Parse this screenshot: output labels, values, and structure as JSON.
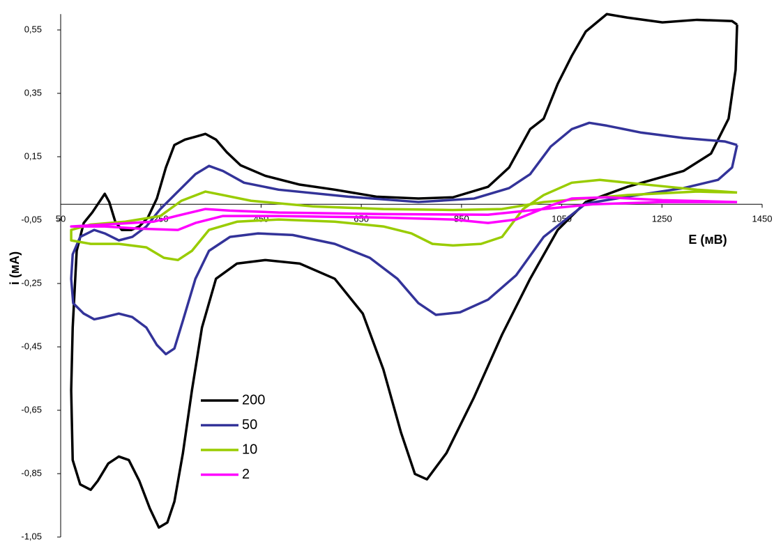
{
  "chart_data": {
    "type": "line",
    "x_label": "E (мВ)",
    "y_label": "i (мА)",
    "xlim": [
      50,
      1450
    ],
    "xticks": [
      50,
      250,
      450,
      650,
      850,
      1050,
      1250,
      1450
    ],
    "ylim": [
      -1.05,
      0.6
    ],
    "yticks": [
      {
        "value": 0.55,
        "label": "0,55"
      },
      {
        "value": 0.35,
        "label": "0,35"
      },
      {
        "value": 0.15,
        "label": "0,15"
      },
      {
        "value": -0.05,
        "label": "-0,05"
      },
      {
        "value": -0.25,
        "label": "-0,25"
      },
      {
        "value": -0.45,
        "label": "-0,45"
      },
      {
        "value": -0.65,
        "label": "-0,65"
      },
      {
        "value": -0.85,
        "label": "-0,85"
      },
      {
        "value": -1.05,
        "label": "-1,05"
      }
    ],
    "legend": "lower left",
    "series": [
      {
        "name": "200",
        "color": "#000000",
        "x": [
          1400,
          1397,
          1383,
          1348,
          1293,
          1181,
          1098,
          1042,
          987,
          931,
          875,
          820,
          781,
          757,
          729,
          694,
          653,
          597,
          527,
          458,
          402,
          360,
          332,
          312,
          294,
          277,
          263,
          246,
          228,
          207,
          186,
          166,
          145,
          124,
          110,
          89,
          74,
          71,
          74,
          82,
          96,
          113,
          127,
          138,
          147,
          159,
          172,
          191,
          207,
          224,
          242,
          260,
          277,
          298,
          319,
          339,
          360,
          381,
          409,
          458,
          527,
          597,
          680,
          764,
          833,
          903,
          945,
          987,
          1014,
          1042,
          1070,
          1098,
          1140,
          1181,
          1251,
          1320,
          1390,
          1400
        ],
        "values": [
          0.567,
          0.424,
          0.27,
          0.16,
          0.105,
          0.055,
          0.007,
          -0.081,
          -0.235,
          -0.411,
          -0.609,
          -0.785,
          -0.868,
          -0.851,
          -0.719,
          -0.521,
          -0.345,
          -0.235,
          -0.187,
          -0.176,
          -0.187,
          -0.235,
          -0.389,
          -0.587,
          -0.785,
          -0.938,
          -1.004,
          -1.02,
          -0.96,
          -0.873,
          -0.807,
          -0.796,
          -0.818,
          -0.873,
          -0.901,
          -0.884,
          -0.807,
          -0.587,
          -0.389,
          -0.147,
          -0.059,
          -0.026,
          0.007,
          0.033,
          0.007,
          -0.055,
          -0.081,
          -0.081,
          -0.07,
          -0.042,
          0.018,
          0.116,
          0.187,
          0.204,
          0.213,
          0.222,
          0.204,
          0.165,
          0.123,
          0.09,
          0.062,
          0.046,
          0.024,
          0.018,
          0.022,
          0.055,
          0.116,
          0.237,
          0.27,
          0.38,
          0.468,
          0.545,
          0.6,
          0.589,
          0.574,
          0.582,
          0.578,
          0.567
        ]
      },
      {
        "name": "50",
        "color": "#333399",
        "x": [
          1400,
          1390,
          1362,
          1293,
          1181,
          1098,
          1014,
          959,
          903,
          847,
          799,
          764,
          722,
          667,
          597,
          513,
          444,
          388,
          346,
          319,
          294,
          277,
          260,
          242,
          221,
          193,
          166,
          138,
          117,
          96,
          75,
          71,
          74,
          89,
          117,
          138,
          166,
          193,
          221,
          249,
          284,
          319,
          346,
          374,
          416,
          485,
          624,
          764,
          875,
          945,
          987,
          1028,
          1070,
          1105,
          1140,
          1209,
          1293,
          1376,
          1400
        ],
        "values": [
          0.187,
          0.116,
          0.077,
          0.051,
          0.024,
          0.002,
          -0.103,
          -0.224,
          -0.301,
          -0.341,
          -0.349,
          -0.312,
          -0.235,
          -0.169,
          -0.125,
          -0.097,
          -0.092,
          -0.103,
          -0.147,
          -0.235,
          -0.367,
          -0.455,
          -0.473,
          -0.444,
          -0.389,
          -0.356,
          -0.345,
          -0.356,
          -0.363,
          -0.345,
          -0.312,
          -0.235,
          -0.158,
          -0.103,
          -0.081,
          -0.092,
          -0.114,
          -0.103,
          -0.07,
          -0.015,
          0.04,
          0.095,
          0.121,
          0.105,
          0.068,
          0.046,
          0.024,
          0.007,
          0.018,
          0.051,
          0.095,
          0.182,
          0.237,
          0.257,
          0.248,
          0.226,
          0.209,
          0.198,
          0.187
        ]
      },
      {
        "name": "10",
        "color": "#99cc00",
        "x": [
          1400,
          1320,
          1181,
          1126,
          1070,
          1014,
          973,
          931,
          889,
          833,
          792,
          750,
          694,
          597,
          485,
          402,
          346,
          312,
          284,
          256,
          221,
          166,
          110,
          71,
          71,
          110,
          179,
          249,
          291,
          339,
          374,
          430,
          555,
          694,
          833,
          931,
          1014,
          1181,
          1320,
          1400
        ],
        "values": [
          0.037,
          0.046,
          0.068,
          0.077,
          0.068,
          0.029,
          -0.015,
          -0.103,
          -0.125,
          -0.13,
          -0.125,
          -0.092,
          -0.07,
          -0.055,
          -0.048,
          -0.055,
          -0.081,
          -0.147,
          -0.176,
          -0.169,
          -0.136,
          -0.125,
          -0.125,
          -0.114,
          -0.081,
          -0.064,
          -0.055,
          -0.037,
          0.011,
          0.04,
          0.029,
          0.011,
          -0.007,
          -0.015,
          -0.018,
          -0.015,
          0.007,
          0.029,
          0.04,
          0.037
        ]
      },
      {
        "name": "2",
        "color": "#ff00ff",
        "x": [
          1400,
          1251,
          1140,
          1070,
          1028,
          959,
          903,
          833,
          694,
          485,
          374,
          319,
          284,
          207,
          138,
          71,
          138,
          235,
          291,
          339,
          388,
          485,
          694,
          903,
          1014,
          1112,
          1251,
          1400
        ],
        "values": [
          0.007,
          0.013,
          0.022,
          0.018,
          -0.004,
          -0.048,
          -0.059,
          -0.048,
          -0.042,
          -0.037,
          -0.037,
          -0.059,
          -0.081,
          -0.077,
          -0.07,
          -0.07,
          -0.064,
          -0.055,
          -0.033,
          -0.015,
          -0.02,
          -0.026,
          -0.031,
          -0.033,
          -0.015,
          0.0,
          0.007,
          0.007
        ]
      }
    ]
  }
}
